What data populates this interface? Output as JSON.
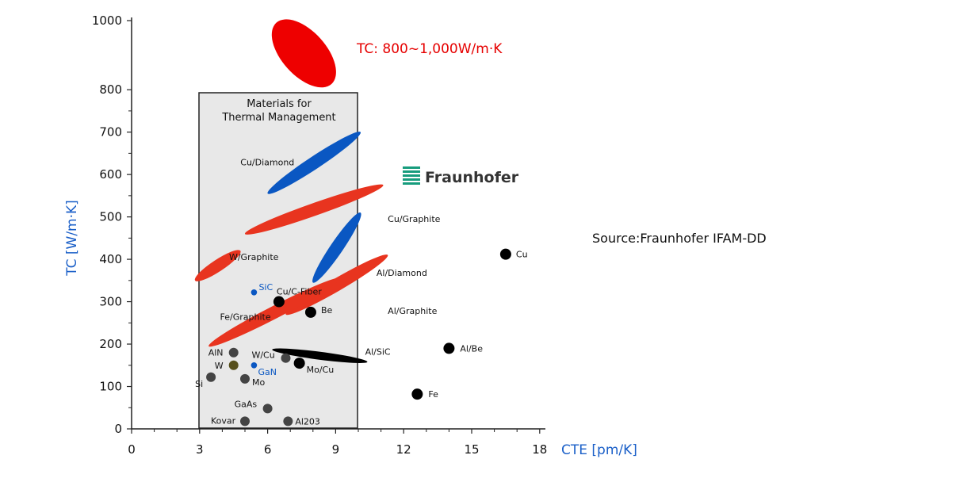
{
  "chart_data": {
    "type": "scatter",
    "xlabel": "CTE [pm/K]",
    "ylabel": "TC [W/m·K]",
    "xlim": [
      0,
      18
    ],
    "ylim": [
      0,
      1000
    ],
    "x_ticks": [
      0,
      3,
      6,
      9,
      12,
      15,
      18
    ],
    "y_ticks": [
      0,
      100,
      200,
      300,
      400,
      500,
      600,
      700,
      800,
      1000
    ],
    "highlight_region": {
      "label_line1": "Materials for",
      "label_line2": "Thermal Management",
      "x_range": [
        3,
        10
      ]
    },
    "headline": {
      "text": "TC: 800~1,000W/m·K",
      "color": "#e60000"
    },
    "logo": {
      "text": "Fraunhofer",
      "color": "#179c7d"
    },
    "source_note": "Source:Fraunhofer IFAM-DD",
    "composites": [
      {
        "name": "TC: 800~1,000W/m·K",
        "x_range": [
          6.1,
          9.1
        ],
        "y_range": [
          810,
          1000
        ],
        "color": "red",
        "show_label": false
      },
      {
        "name": "Cu/Diamond",
        "x_range": [
          6.0,
          10.1
        ],
        "y_range": [
          555,
          700
        ],
        "color": "blue",
        "label_x": 4.8,
        "label_y": 622
      },
      {
        "name": "Cu/Graphite",
        "x_range": [
          5.0,
          11.1
        ],
        "y_range": [
          460,
          575
        ],
        "color": "red",
        "label_x": 11.3,
        "label_y": 488
      },
      {
        "name": "Al/Diamond",
        "x_range": [
          8.0,
          10.1
        ],
        "y_range": [
          345,
          510
        ],
        "color": "blue",
        "label_x": 10.8,
        "label_y": 361
      },
      {
        "name": "W/Graphite",
        "x_range": [
          2.8,
          4.8
        ],
        "y_range": [
          350,
          420
        ],
        "color": "red",
        "label_x": 4.3,
        "label_y": 398
      },
      {
        "name": "Al/Graphite",
        "x_range": [
          6.8,
          11.3
        ],
        "y_range": [
          270,
          410
        ],
        "color": "red",
        "label_x": 11.3,
        "label_y": 271
      },
      {
        "name": "Fe/Graphite",
        "x_range": [
          3.4,
          9.2
        ],
        "y_range": [
          195,
          355
        ],
        "color": "red",
        "label_x": 3.9,
        "label_y": 257
      },
      {
        "name": "Al/SiC",
        "x_range": [
          6.2,
          10.4
        ],
        "y_range": [
          158,
          187
        ],
        "color": "black",
        "label_x": 10.3,
        "label_y": 175
      }
    ],
    "points": [
      {
        "name": "Cu",
        "x": 16.5,
        "y": 412,
        "size": "large",
        "color": "black"
      },
      {
        "name": "Al/Be",
        "x": 14.0,
        "y": 190,
        "size": "large",
        "color": "black"
      },
      {
        "name": "Fe",
        "x": 12.6,
        "y": 82,
        "size": "large",
        "color": "black"
      },
      {
        "name": "Be",
        "x": 7.9,
        "y": 275,
        "size": "large",
        "color": "black"
      },
      {
        "name": "Cu/C-Fiber",
        "x": 6.5,
        "y": 300,
        "size": "large",
        "color": "black"
      },
      {
        "name": "Mo/Cu",
        "x": 7.4,
        "y": 155,
        "size": "large",
        "color": "black"
      },
      {
        "name": "SiC",
        "x": 5.4,
        "y": 322,
        "size": "small",
        "color": "blue"
      },
      {
        "name": "GaN",
        "x": 5.4,
        "y": 150,
        "size": "small",
        "color": "blue"
      },
      {
        "name": "AlN",
        "x": 4.5,
        "y": 180,
        "size": "medium",
        "color": "gray"
      },
      {
        "name": "W",
        "x": 4.5,
        "y": 150,
        "size": "medium",
        "color": "olive"
      },
      {
        "name": "W/Cu",
        "x": 6.8,
        "y": 167,
        "size": "medium",
        "color": "gray"
      },
      {
        "name": "Si",
        "x": 3.5,
        "y": 122,
        "size": "medium",
        "color": "gray"
      },
      {
        "name": "Mo",
        "x": 5.0,
        "y": 118,
        "size": "medium",
        "color": "gray"
      },
      {
        "name": "GaAs",
        "x": 6.0,
        "y": 48,
        "size": "medium",
        "color": "gray"
      },
      {
        "name": "Kovar",
        "x": 5.0,
        "y": 18,
        "size": "medium",
        "color": "gray"
      },
      {
        "name": "Al203",
        "x": 6.9,
        "y": 18,
        "size": "medium",
        "color": "gray"
      }
    ]
  },
  "colors": {
    "red": "#e8341f",
    "bright_red": "#ee0000",
    "blue": "#0a57c2",
    "black": "#000000",
    "gray": "#444444",
    "olive": "#57501c",
    "region": "#e8e8e8",
    "axis_title": "#1a5fc8"
  }
}
